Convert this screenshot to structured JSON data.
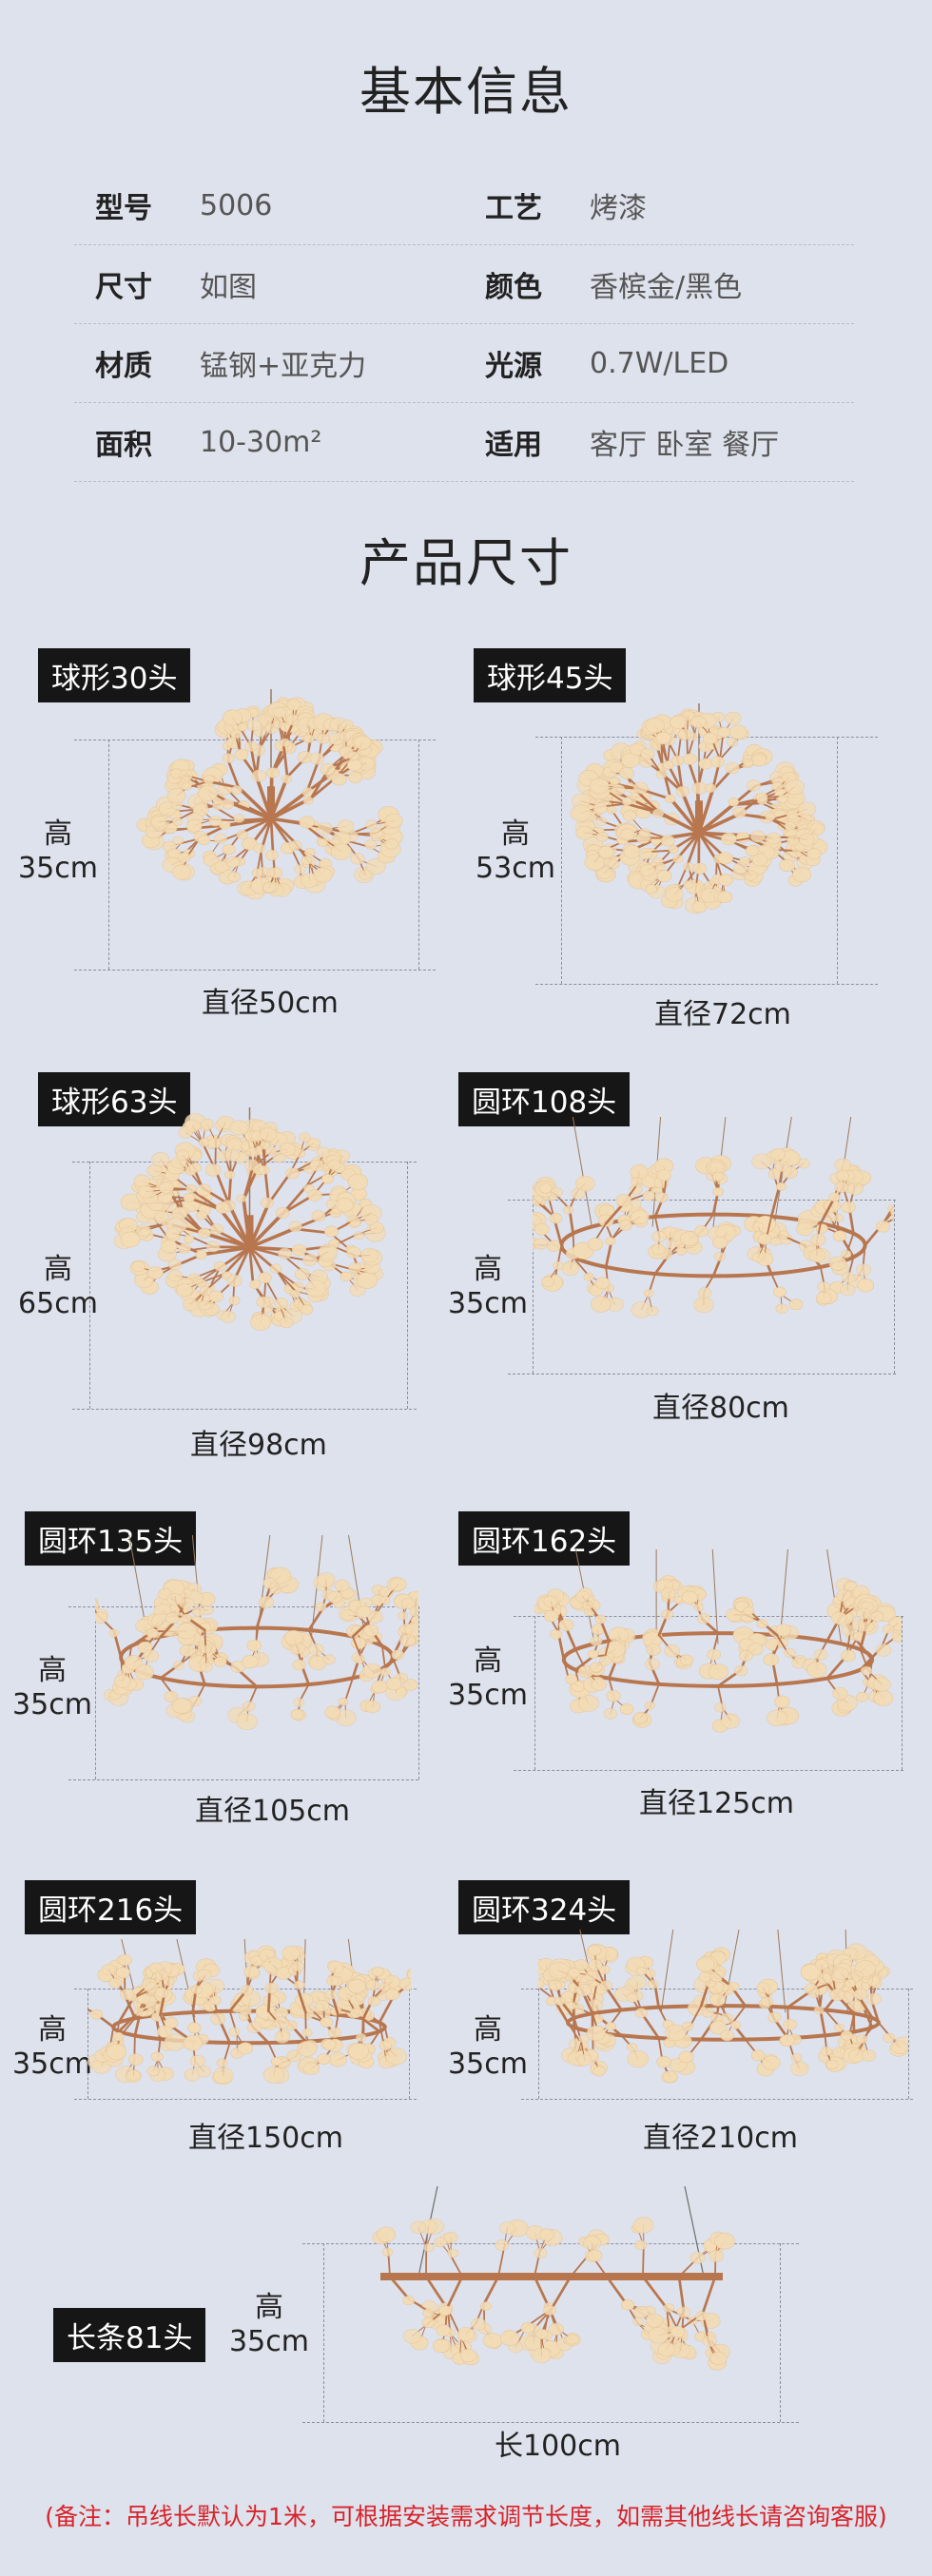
{
  "basic_info": {
    "title": "基本信息",
    "rows": [
      {
        "l1": "型号",
        "v1": "5006",
        "l2": "工艺",
        "v2": "烤漆"
      },
      {
        "l1": "尺寸",
        "v1": "如图",
        "l2": "颜色",
        "v2": "香槟金/黑色"
      },
      {
        "l1": "材质",
        "v1": "锰钢+亚克力",
        "l2": "光源",
        "v2": "0.7W/LED"
      },
      {
        "l1": "面积",
        "v1": "10-30m²",
        "l2": "适用",
        "v2": "客厅 卧室 餐厅"
      }
    ]
  },
  "size_section": {
    "title": "产品尺寸",
    "height_word": "高",
    "products": [
      {
        "tag": "球形30头",
        "height": "35cm",
        "size": "直径50cm"
      },
      {
        "tag": "球形45头",
        "height": "53cm",
        "size": "直径72cm"
      },
      {
        "tag": "球形63头",
        "height": "65cm",
        "size": "直径98cm"
      },
      {
        "tag": "圆环108头",
        "height": "35cm",
        "size": "直径80cm"
      },
      {
        "tag": "圆环135头",
        "height": "35cm",
        "size": "直径105cm"
      },
      {
        "tag": "圆环162头",
        "height": "35cm",
        "size": "直径125cm"
      },
      {
        "tag": "圆环216头",
        "height": "35cm",
        "size": "直径150cm"
      },
      {
        "tag": "圆环324头",
        "height": "35cm",
        "size": "直径210cm"
      },
      {
        "tag": "长条81头",
        "height": "35cm",
        "size": "长100cm"
      }
    ]
  },
  "note": "(备注：吊线长默认为1米，可根据安装需求调节长度，如需其他线长请咨询客服)",
  "colors": {
    "background": "#dee2ec",
    "tag_bg": "#161616",
    "note": "#d8232a",
    "branch": "#b8764e",
    "leaf": "#f3dcb6"
  }
}
